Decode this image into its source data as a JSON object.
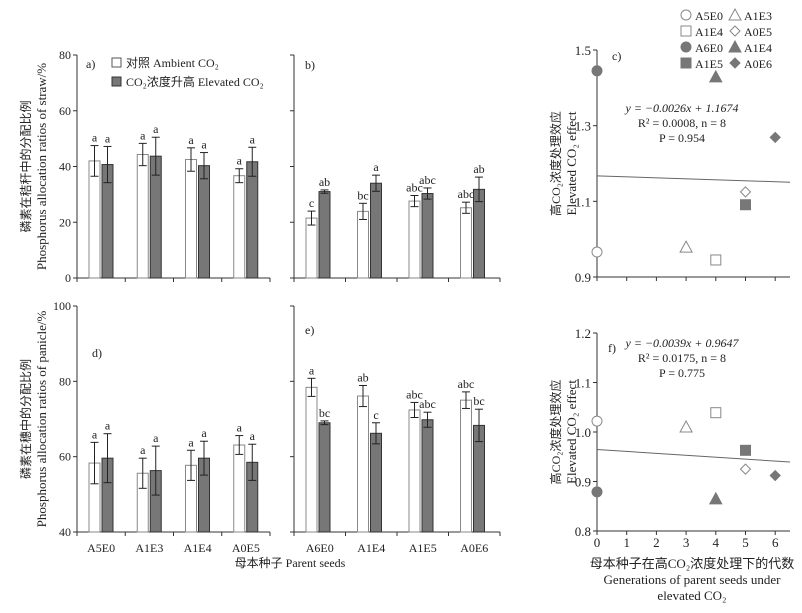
{
  "shared_xlabel": "母本种子 Parent seeds",
  "colors": {
    "ambient": "#ffffff",
    "elevated": "#777777",
    "axis": "#333333",
    "marker_open": "#888888",
    "marker_filled": "#777777"
  },
  "chart_data": [
    {
      "panel": "a)",
      "type": "bar",
      "ylim": [
        0,
        80
      ],
      "yticks": [
        "0",
        "20",
        "40",
        "60",
        "80"
      ],
      "ylabel": [
        "磷素在秸秆中的分配比例",
        "Phosphorus allocation ratios of straw/%"
      ],
      "legend_position": "top-left",
      "series": [
        {
          "name": "对照 Ambient CO₂",
          "values": [
            42.0,
            44.3,
            42.5,
            36.7
          ],
          "errors": [
            5.5,
            4.0,
            4.2,
            2.5
          ],
          "letters": [
            "a",
            "a",
            "a",
            "a"
          ]
        },
        {
          "name": "CO₂浓度升高 Elevated CO₂",
          "values": [
            40.7,
            43.7,
            40.3,
            41.7
          ],
          "errors": [
            6.5,
            6.8,
            4.7,
            5.2
          ],
          "letters": [
            "a",
            "a",
            "a",
            "a"
          ]
        }
      ]
    },
    {
      "panel": "b)",
      "type": "bar",
      "ylim": [
        0,
        80
      ],
      "series": [
        {
          "values": [
            21.5,
            23.9,
            27.6,
            25.2
          ],
          "errors": [
            2.5,
            2.9,
            2.0,
            2.0
          ],
          "letters": [
            "c",
            "bc",
            "abc",
            "abc"
          ]
        },
        {
          "values": [
            31.0,
            34.0,
            30.3,
            31.8
          ],
          "errors": [
            0.6,
            2.9,
            2.0,
            4.4
          ],
          "letters": [
            "ab",
            "a",
            "abc",
            "ab"
          ]
        }
      ]
    },
    {
      "panel": "c)",
      "type": "scatter",
      "xlim": [
        0,
        6.5
      ],
      "ylim": [
        0.9,
        1.5
      ],
      "yticks": [
        "0.9",
        "1.1",
        "1.3",
        "1.5"
      ],
      "ylabel": [
        "高CO₂浓度处理效应",
        "Elevated CO₂ effect"
      ],
      "legend": [
        {
          "label": "A5E0",
          "marker": "circle",
          "filled": false
        },
        {
          "label": "A1E3",
          "marker": "triangle",
          "filled": false
        },
        {
          "label": "A1E4",
          "marker": "square",
          "filled": false
        },
        {
          "label": "A0E5",
          "marker": "diamond",
          "filled": false
        },
        {
          "label": "A6E0",
          "marker": "circle",
          "filled": true
        },
        {
          "label": "A1E4",
          "marker": "triangle",
          "filled": true
        },
        {
          "label": "A1E5",
          "marker": "square",
          "filled": true
        },
        {
          "label": "A0E6",
          "marker": "diamond",
          "filled": true
        }
      ],
      "points": [
        {
          "x": 0,
          "y": 0.966
        },
        {
          "x": 3,
          "y": 0.979
        },
        {
          "x": 4,
          "y": 0.945
        },
        {
          "x": 5,
          "y": 1.125
        },
        {
          "x": 0,
          "y": 1.445
        },
        {
          "x": 4,
          "y": 1.429
        },
        {
          "x": 5,
          "y": 1.091
        },
        {
          "x": 6,
          "y": 1.269
        }
      ],
      "regression": {
        "slope": -0.0026,
        "intercept": 1.1674
      },
      "equation": [
        "y = −0.0026x + 1.1674",
        "R² = 0.0008, n = 8",
        "P = 0.954"
      ]
    },
    {
      "panel": "d)",
      "type": "bar",
      "ylim": [
        40,
        100
      ],
      "yticks": [
        "40",
        "60",
        "80",
        "100"
      ],
      "ylabel": [
        "磷素在穗中的分配比例",
        "Phosphorus allocation ratios of panicle/%"
      ],
      "categories": [
        "A5E0",
        "A1E3",
        "A1E4",
        "A0E5"
      ],
      "series": [
        {
          "values": [
            58.3,
            55.6,
            57.7,
            63.1
          ],
          "errors": [
            5.5,
            4.0,
            4.0,
            2.5
          ],
          "letters": [
            "a",
            "a",
            "a",
            "a"
          ]
        },
        {
          "values": [
            59.6,
            56.3,
            59.6,
            58.5
          ],
          "errors": [
            6.5,
            6.5,
            4.5,
            4.8
          ],
          "letters": [
            "a",
            "a",
            "a",
            "a"
          ]
        }
      ]
    },
    {
      "panel": "e)",
      "type": "bar",
      "ylim": [
        40,
        100
      ],
      "categories": [
        "A6E0",
        "A1E4",
        "A1E5",
        "A0E6"
      ],
      "series": [
        {
          "values": [
            78.4,
            76.1,
            72.4,
            75.0
          ],
          "errors": [
            2.4,
            2.8,
            2.0,
            2.2
          ],
          "letters": [
            "a",
            "ab",
            "abc",
            "abc"
          ]
        },
        {
          "values": [
            69.0,
            66.2,
            69.8,
            68.3
          ],
          "errors": [
            0.5,
            2.8,
            2.0,
            4.3
          ],
          "letters": [
            "bc",
            "c",
            "abc",
            "bc"
          ]
        }
      ]
    },
    {
      "panel": "f)",
      "type": "scatter",
      "xlim": [
        0,
        6.5
      ],
      "ylim": [
        0.8,
        1.2
      ],
      "yticks": [
        "0.8",
        "0.9",
        "1.0",
        "1.1",
        "1.2"
      ],
      "xticks": [
        "0",
        "1",
        "2",
        "3",
        "4",
        "5",
        "6"
      ],
      "ylabel": [
        "高CO₂浓度处理效应",
        "Elevated CO₂ effect"
      ],
      "xlabel": [
        "母本种子在高CO₂浓度处理下的代数",
        "Generations of parent seeds under",
        "elevated CO₂"
      ],
      "points": [
        {
          "x": 0,
          "y": 1.022
        },
        {
          "x": 3,
          "y": 1.01
        },
        {
          "x": 4,
          "y": 1.039
        },
        {
          "x": 5,
          "y": 0.925
        },
        {
          "x": 0,
          "y": 0.879
        },
        {
          "x": 4,
          "y": 0.865
        },
        {
          "x": 5,
          "y": 0.963
        },
        {
          "x": 6,
          "y": 0.912
        }
      ],
      "regression": {
        "slope": -0.0039,
        "intercept": 0.9647
      },
      "equation": [
        "y = −0.0039x + 0.9647",
        "R² = 0.0175, n = 8",
        "P = 0.775"
      ]
    }
  ]
}
